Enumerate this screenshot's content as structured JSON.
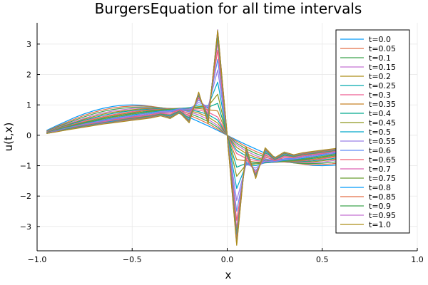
{
  "chart_data": {
    "type": "line",
    "title": "BurgersEquation for all time intervals",
    "xlabel": "x",
    "ylabel": "u(t,x)",
    "xlim": [
      -1.0,
      1.0
    ],
    "ylim": [
      -3.8,
      3.7
    ],
    "xticks": [
      -1.0,
      -0.5,
      0.0,
      0.5,
      1.0
    ],
    "xtick_labels": [
      "−1.0",
      "−0.5",
      "0.0",
      "0.5",
      "1.0"
    ],
    "yticks": [
      -3,
      -2,
      -1,
      0,
      1,
      2,
      3
    ],
    "ytick_labels": [
      "−3",
      "−2",
      "−1",
      "0",
      "1",
      "2",
      "3"
    ],
    "grid": true,
    "legend_position": "top-right",
    "x": [
      -0.95,
      -0.9,
      -0.85,
      -0.8,
      -0.75,
      -0.7,
      -0.65,
      -0.6,
      -0.55,
      -0.5,
      -0.45,
      -0.4,
      -0.35,
      -0.3,
      -0.25,
      -0.2,
      -0.15,
      -0.1,
      -0.05,
      0.0,
      0.05,
      0.1,
      0.15,
      0.2,
      0.25,
      0.3,
      0.35,
      0.4,
      0.45,
      0.5,
      0.55,
      0.6,
      0.65,
      0.7,
      0.75,
      0.8,
      0.85,
      0.9,
      0.95
    ],
    "series": [
      {
        "name": "t=0.0",
        "color": "#009AFA",
        "values": [
          0.16,
          0.31,
          0.45,
          0.59,
          0.71,
          0.81,
          0.89,
          0.95,
          0.99,
          1.0,
          0.99,
          0.95,
          0.89,
          0.81,
          0.71,
          0.59,
          0.45,
          0.31,
          0.16,
          0.0,
          -0.16,
          -0.31,
          -0.45,
          -0.59,
          -0.71,
          -0.81,
          -0.89,
          -0.95,
          -0.99,
          -1.0,
          -0.99,
          -0.95,
          -0.89,
          -0.81,
          -0.71,
          -0.59,
          -0.45,
          -0.31,
          -0.16
        ]
      },
      {
        "name": "t=0.05",
        "color": "#E36F47",
        "values": [
          0.14,
          0.28,
          0.41,
          0.54,
          0.66,
          0.76,
          0.84,
          0.9,
          0.94,
          0.96,
          0.97,
          0.95,
          0.91,
          0.85,
          0.77,
          0.66,
          0.53,
          0.38,
          0.2,
          0.0,
          -0.2,
          -0.38,
          -0.53,
          -0.66,
          -0.77,
          -0.85,
          -0.91,
          -0.95,
          -0.97,
          -0.96,
          -0.94,
          -0.9,
          -0.84,
          -0.76,
          -0.66,
          -0.54,
          -0.41,
          -0.28,
          -0.14
        ]
      },
      {
        "name": "t=0.1",
        "color": "#3EA44E",
        "values": [
          0.13,
          0.26,
          0.38,
          0.5,
          0.61,
          0.71,
          0.79,
          0.85,
          0.89,
          0.92,
          0.93,
          0.93,
          0.91,
          0.87,
          0.81,
          0.72,
          0.6,
          0.45,
          0.26,
          0.0,
          -0.26,
          -0.45,
          -0.6,
          -0.72,
          -0.81,
          -0.87,
          -0.91,
          -0.93,
          -0.93,
          -0.92,
          -0.89,
          -0.85,
          -0.79,
          -0.71,
          -0.61,
          -0.5,
          -0.38,
          -0.26,
          -0.13
        ]
      },
      {
        "name": "t=0.15",
        "color": "#C371D2",
        "values": [
          0.12,
          0.24,
          0.35,
          0.46,
          0.56,
          0.66,
          0.74,
          0.8,
          0.84,
          0.88,
          0.9,
          0.9,
          0.9,
          0.88,
          0.84,
          0.77,
          0.67,
          0.52,
          0.32,
          0.0,
          -0.32,
          -0.52,
          -0.67,
          -0.77,
          -0.84,
          -0.88,
          -0.9,
          -0.9,
          -0.9,
          -0.88,
          -0.84,
          -0.8,
          -0.74,
          -0.66,
          -0.56,
          -0.46,
          -0.35,
          -0.24,
          -0.12
        ]
      },
      {
        "name": "t=0.2",
        "color": "#AC8E18",
        "values": [
          0.11,
          0.22,
          0.33,
          0.43,
          0.53,
          0.62,
          0.7,
          0.76,
          0.8,
          0.84,
          0.87,
          0.88,
          0.89,
          0.88,
          0.86,
          0.81,
          0.73,
          0.6,
          0.4,
          0.0,
          -0.4,
          -0.6,
          -0.73,
          -0.81,
          -0.86,
          -0.88,
          -0.89,
          -0.88,
          -0.87,
          -0.84,
          -0.8,
          -0.76,
          -0.7,
          -0.62,
          -0.53,
          -0.43,
          -0.33,
          -0.22,
          -0.11
        ]
      },
      {
        "name": "t=0.25",
        "color": "#00A9AD",
        "values": [
          0.1,
          0.21,
          0.31,
          0.41,
          0.5,
          0.58,
          0.66,
          0.72,
          0.77,
          0.81,
          0.84,
          0.86,
          0.88,
          0.88,
          0.87,
          0.84,
          0.78,
          0.68,
          0.5,
          0.0,
          -0.5,
          -0.68,
          -0.78,
          -0.84,
          -0.87,
          -0.88,
          -0.88,
          -0.86,
          -0.84,
          -0.81,
          -0.77,
          -0.72,
          -0.66,
          -0.58,
          -0.5,
          -0.41,
          -0.31,
          -0.21,
          -0.1
        ]
      },
      {
        "name": "t=0.3",
        "color": "#ED5D92",
        "values": [
          0.1,
          0.2,
          0.29,
          0.38,
          0.47,
          0.55,
          0.62,
          0.68,
          0.73,
          0.78,
          0.81,
          0.84,
          0.86,
          0.88,
          0.88,
          0.87,
          0.83,
          0.76,
          0.6,
          0.0,
          -0.6,
          -0.76,
          -0.83,
          -0.87,
          -0.88,
          -0.88,
          -0.86,
          -0.84,
          -0.81,
          -0.78,
          -0.73,
          -0.68,
          -0.62,
          -0.55,
          -0.47,
          -0.38,
          -0.29,
          -0.2,
          -0.1
        ]
      },
      {
        "name": "t=0.35",
        "color": "#C68226",
        "values": [
          0.09,
          0.19,
          0.28,
          0.36,
          0.44,
          0.52,
          0.59,
          0.65,
          0.7,
          0.75,
          0.79,
          0.82,
          0.85,
          0.87,
          0.89,
          0.9,
          0.88,
          0.84,
          0.8,
          0.0,
          -0.8,
          -0.84,
          -0.88,
          -0.9,
          -0.89,
          -0.87,
          -0.85,
          -0.82,
          -0.79,
          -0.75,
          -0.7,
          -0.65,
          -0.59,
          -0.52,
          -0.44,
          -0.36,
          -0.28,
          -0.19,
          -0.09
        ]
      },
      {
        "name": "t=0.4",
        "color": "#00A98D",
        "values": [
          0.09,
          0.18,
          0.26,
          0.34,
          0.42,
          0.49,
          0.56,
          0.62,
          0.67,
          0.72,
          0.76,
          0.8,
          0.83,
          0.86,
          0.88,
          0.9,
          0.91,
          0.92,
          1.05,
          0.0,
          -1.05,
          -0.92,
          -0.91,
          -0.9,
          -0.88,
          -0.86,
          -0.83,
          -0.8,
          -0.76,
          -0.72,
          -0.67,
          -0.62,
          -0.56,
          -0.49,
          -0.42,
          -0.34,
          -0.26,
          -0.18,
          -0.09
        ]
      },
      {
        "name": "t=0.45",
        "color": "#8E971E",
        "values": [
          0.08,
          0.17,
          0.25,
          0.33,
          0.4,
          0.47,
          0.54,
          0.6,
          0.65,
          0.7,
          0.74,
          0.78,
          0.82,
          0.85,
          0.88,
          0.91,
          0.94,
          0.96,
          1.35,
          0.0,
          -1.35,
          -0.96,
          -0.94,
          -0.91,
          -0.88,
          -0.85,
          -0.82,
          -0.78,
          -0.74,
          -0.7,
          -0.65,
          -0.6,
          -0.54,
          -0.47,
          -0.4,
          -0.33,
          -0.25,
          -0.17,
          -0.08
        ]
      },
      {
        "name": "t=0.5",
        "color": "#00A8CB",
        "values": [
          0.08,
          0.16,
          0.24,
          0.31,
          0.38,
          0.45,
          0.51,
          0.57,
          0.62,
          0.67,
          0.71,
          0.76,
          0.8,
          0.83,
          0.88,
          0.9,
          1.0,
          0.97,
          1.75,
          0.0,
          -1.75,
          -0.97,
          -1.0,
          -0.9,
          -0.88,
          -0.83,
          -0.8,
          -0.76,
          -0.71,
          -0.67,
          -0.62,
          -0.57,
          -0.51,
          -0.45,
          -0.38,
          -0.31,
          -0.24,
          -0.16,
          -0.08
        ]
      },
      {
        "name": "t=0.55",
        "color": "#9B7FE8",
        "values": [
          0.08,
          0.15,
          0.23,
          0.3,
          0.37,
          0.43,
          0.49,
          0.55,
          0.6,
          0.64,
          0.69,
          0.73,
          0.78,
          0.8,
          0.87,
          0.85,
          1.08,
          0.94,
          2.15,
          0.0,
          -2.15,
          -0.94,
          -1.08,
          -0.85,
          -0.87,
          -0.8,
          -0.78,
          -0.73,
          -0.69,
          -0.64,
          -0.6,
          -0.55,
          -0.49,
          -0.43,
          -0.37,
          -0.3,
          -0.23,
          -0.15,
          -0.08
        ]
      },
      {
        "name": "t=0.6",
        "color": "#608CF6",
        "values": [
          0.07,
          0.15,
          0.22,
          0.29,
          0.35,
          0.41,
          0.47,
          0.53,
          0.57,
          0.62,
          0.66,
          0.71,
          0.76,
          0.77,
          0.86,
          0.78,
          1.16,
          0.87,
          2.5,
          0.0,
          -2.5,
          -0.87,
          -1.16,
          -0.78,
          -0.86,
          -0.77,
          -0.76,
          -0.71,
          -0.66,
          -0.62,
          -0.57,
          -0.53,
          -0.47,
          -0.41,
          -0.35,
          -0.29,
          -0.22,
          -0.15,
          -0.07
        ]
      },
      {
        "name": "t=0.65",
        "color": "#F05F73",
        "values": [
          0.07,
          0.14,
          0.21,
          0.28,
          0.34,
          0.4,
          0.45,
          0.51,
          0.55,
          0.6,
          0.64,
          0.68,
          0.74,
          0.73,
          0.84,
          0.7,
          1.22,
          0.78,
          2.8,
          0.0,
          -2.8,
          -0.78,
          -1.22,
          -0.7,
          -0.84,
          -0.73,
          -0.74,
          -0.68,
          -0.64,
          -0.6,
          -0.55,
          -0.51,
          -0.45,
          -0.4,
          -0.34,
          -0.28,
          -0.21,
          -0.14,
          -0.07
        ]
      },
      {
        "name": "t=0.7",
        "color": "#DD64B5",
        "values": [
          0.07,
          0.14,
          0.2,
          0.27,
          0.33,
          0.38,
          0.44,
          0.49,
          0.53,
          0.58,
          0.62,
          0.66,
          0.72,
          0.69,
          0.82,
          0.62,
          1.27,
          0.68,
          3.05,
          0.0,
          -3.05,
          -0.68,
          -1.27,
          -0.62,
          -0.82,
          -0.69,
          -0.72,
          -0.66,
          -0.62,
          -0.58,
          -0.53,
          -0.49,
          -0.44,
          -0.38,
          -0.33,
          -0.27,
          -0.2,
          -0.14,
          -0.07
        ]
      },
      {
        "name": "t=0.75",
        "color": "#6B9E32",
        "values": [
          0.07,
          0.13,
          0.2,
          0.26,
          0.32,
          0.37,
          0.42,
          0.47,
          0.52,
          0.56,
          0.6,
          0.64,
          0.7,
          0.66,
          0.8,
          0.56,
          1.31,
          0.6,
          3.22,
          0.0,
          -3.22,
          -0.6,
          -1.31,
          -0.56,
          -0.8,
          -0.66,
          -0.7,
          -0.64,
          -0.6,
          -0.56,
          -0.52,
          -0.47,
          -0.42,
          -0.37,
          -0.32,
          -0.26,
          -0.2,
          -0.13,
          -0.07
        ]
      },
      {
        "name": "t=0.8",
        "color": "#009AFA",
        "values": [
          0.06,
          0.13,
          0.19,
          0.25,
          0.31,
          0.36,
          0.41,
          0.46,
          0.5,
          0.54,
          0.58,
          0.62,
          0.68,
          0.63,
          0.78,
          0.51,
          1.34,
          0.52,
          3.35,
          0.0,
          -3.35,
          -0.52,
          -1.34,
          -0.51,
          -0.78,
          -0.63,
          -0.68,
          -0.62,
          -0.58,
          -0.54,
          -0.5,
          -0.46,
          -0.41,
          -0.36,
          -0.31,
          -0.25,
          -0.19,
          -0.13,
          -0.06
        ]
      },
      {
        "name": "t=0.85",
        "color": "#E36F47",
        "values": [
          0.06,
          0.12,
          0.18,
          0.24,
          0.3,
          0.35,
          0.4,
          0.44,
          0.49,
          0.53,
          0.57,
          0.61,
          0.67,
          0.6,
          0.77,
          0.47,
          1.37,
          0.47,
          3.43,
          0.0,
          -3.43,
          -0.47,
          -1.37,
          -0.47,
          -0.77,
          -0.6,
          -0.67,
          -0.61,
          -0.57,
          -0.53,
          -0.49,
          -0.44,
          -0.4,
          -0.35,
          -0.3,
          -0.24,
          -0.18,
          -0.12,
          -0.06
        ]
      },
      {
        "name": "t=0.9",
        "color": "#3EA44E",
        "values": [
          0.06,
          0.12,
          0.18,
          0.24,
          0.29,
          0.34,
          0.39,
          0.43,
          0.47,
          0.51,
          0.55,
          0.59,
          0.66,
          0.58,
          0.76,
          0.44,
          1.39,
          0.43,
          3.47,
          0.0,
          -3.55,
          -0.43,
          -1.39,
          -0.44,
          -0.76,
          -0.58,
          -0.66,
          -0.59,
          -0.55,
          -0.51,
          -0.47,
          -0.43,
          -0.39,
          -0.34,
          -0.29,
          -0.24,
          -0.18,
          -0.12,
          -0.06
        ]
      },
      {
        "name": "t=0.95",
        "color": "#C371D2",
        "values": [
          0.06,
          0.12,
          0.17,
          0.23,
          0.28,
          0.33,
          0.38,
          0.42,
          0.46,
          0.5,
          0.54,
          0.58,
          0.65,
          0.56,
          0.75,
          0.42,
          1.4,
          0.4,
          3.47,
          0.0,
          -3.6,
          -0.4,
          -1.4,
          -0.42,
          -0.75,
          -0.56,
          -0.65,
          -0.58,
          -0.54,
          -0.5,
          -0.46,
          -0.42,
          -0.38,
          -0.33,
          -0.28,
          -0.23,
          -0.17,
          -0.12,
          -0.06
        ]
      },
      {
        "name": "t=1.0",
        "color": "#AC8E18",
        "values": [
          0.06,
          0.11,
          0.17,
          0.22,
          0.27,
          0.32,
          0.37,
          0.41,
          0.45,
          0.49,
          0.53,
          0.57,
          0.64,
          0.55,
          0.74,
          0.41,
          1.42,
          0.38,
          3.45,
          0.0,
          -3.62,
          -0.38,
          -1.42,
          -0.41,
          -0.74,
          -0.55,
          -0.64,
          -0.57,
          -0.53,
          -0.49,
          -0.45,
          -0.41,
          -0.37,
          -0.32,
          -0.27,
          -0.22,
          -0.17,
          -0.11,
          -0.06
        ]
      }
    ]
  }
}
